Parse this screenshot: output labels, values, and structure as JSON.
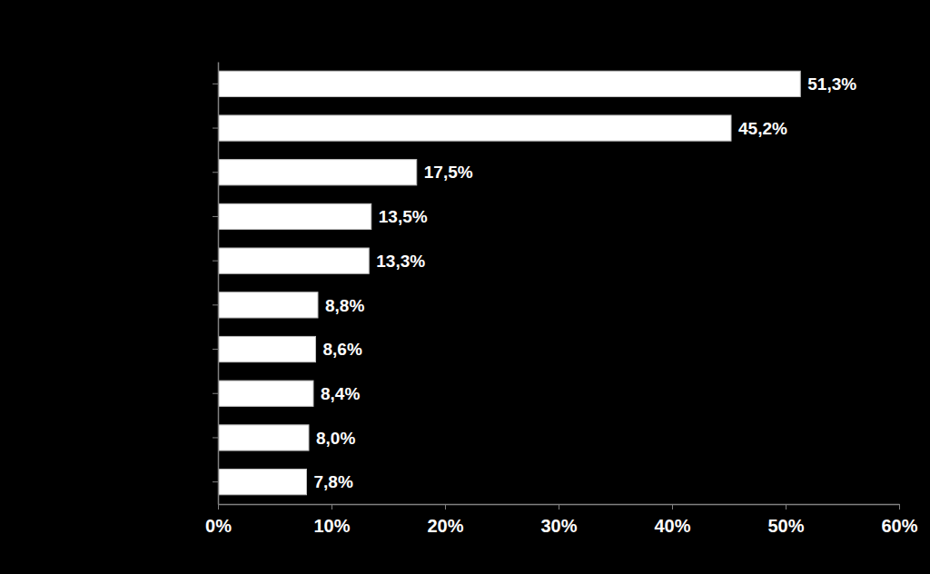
{
  "chart_data": {
    "type": "bar",
    "orientation": "horizontal",
    "categories": [
      null,
      null,
      null,
      null,
      null,
      null,
      null,
      null,
      null,
      null
    ],
    "values": [
      51.3,
      45.2,
      17.5,
      13.5,
      13.3,
      8.8,
      8.6,
      8.4,
      8.0,
      7.8
    ],
    "value_labels": [
      "51,3%",
      "45,2%",
      "17,5%",
      "13,5%",
      "13,3%",
      "8,8%",
      "8,6%",
      "8,4%",
      "8,0%",
      "7,8%"
    ],
    "color": "#ffffff",
    "xlim": [
      0,
      60
    ],
    "xticks": [
      {
        "value": 0,
        "label": "0%"
      },
      {
        "value": 10,
        "label": "10%"
      },
      {
        "value": 20,
        "label": "20%"
      },
      {
        "value": 30,
        "label": "30%"
      },
      {
        "value": 40,
        "label": "40%"
      },
      {
        "value": 50,
        "label": "50%"
      },
      {
        "value": 60,
        "label": "60%"
      }
    ],
    "grid": false,
    "data_labels": true,
    "tick_labels": "x"
  }
}
